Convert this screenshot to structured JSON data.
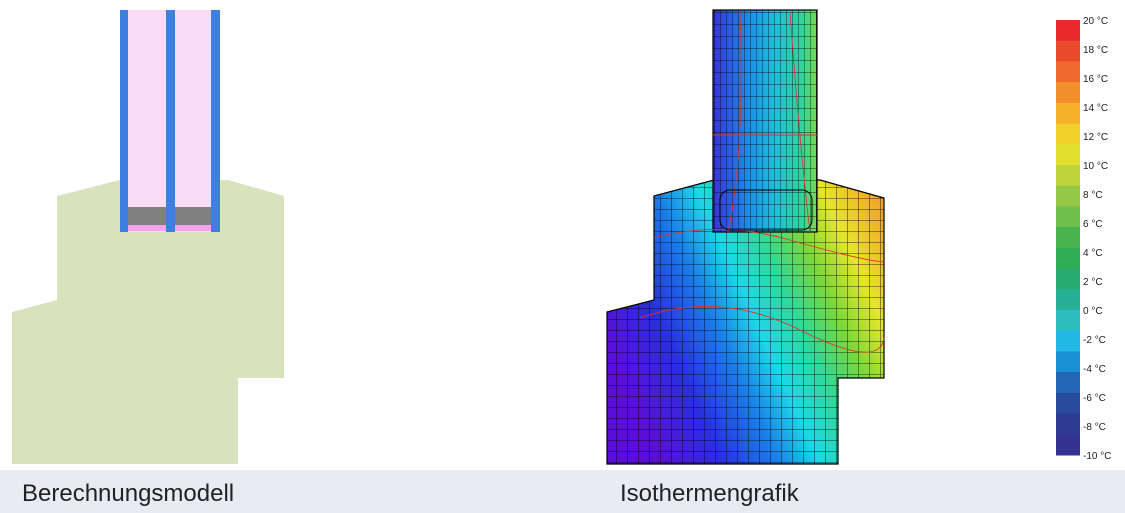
{
  "captions": {
    "left": "Berechnungsmodell",
    "right": "Isothermengrafik"
  },
  "legend": {
    "labels": [
      "20 °C",
      "18 °C",
      "16 °C",
      "14 °C",
      "12 °C",
      "10 °C",
      "8 °C",
      "6 °C",
      "4 °C",
      "2 °C",
      "0 °C",
      "-2 °C",
      "-4 °C",
      "-6 °C",
      "-8 °C",
      "-10 °C"
    ],
    "colors": [
      "#e8282b",
      "#eb4a2c",
      "#ef6b2d",
      "#f38f2b",
      "#f7b02a",
      "#f2d22a",
      "#e2df2e",
      "#bfd33a",
      "#95c846",
      "#6fbf4c",
      "#47b44d",
      "#2fae55",
      "#27ab70",
      "#26b095",
      "#2ebdbf",
      "#22b7e5",
      "#1a8fd6",
      "#2367b6",
      "#2a4c9e",
      "#2d3c92",
      "#353392"
    ]
  },
  "colors": {
    "model_body": "#d8e2bc",
    "glass_fill": "#fadcf6",
    "glass_pane": "#3f7fdf",
    "spacer": "#808080",
    "seal": "#f4a2ea",
    "caption_bar": "#e9ebf3"
  }
}
